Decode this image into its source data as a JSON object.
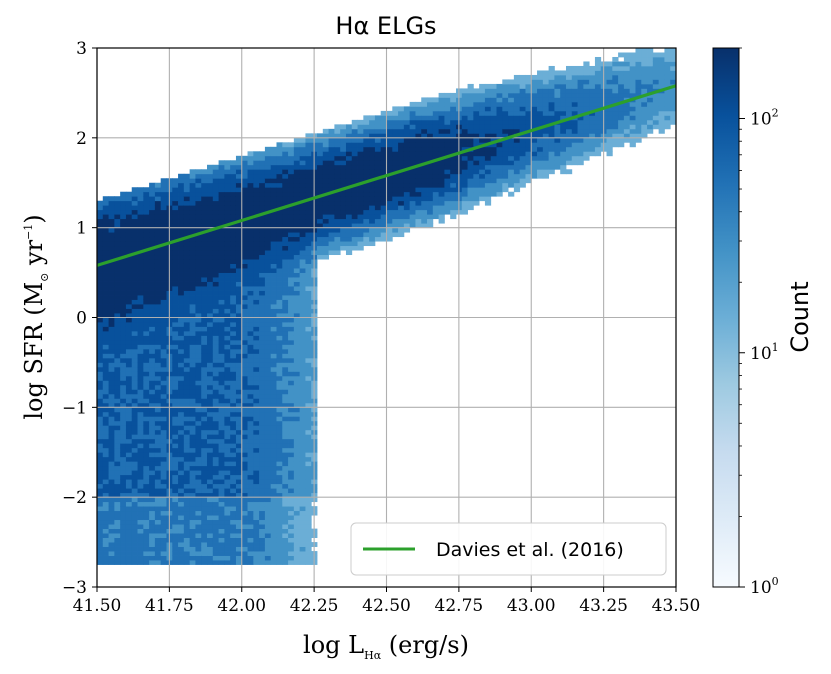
{
  "chart_data": {
    "type": "heatmap",
    "title": "Hα ELGs",
    "title_plain": "Hα ELGs",
    "xlabel": "log L_Hα (erg/s)",
    "xlabel_parts": {
      "prefix": "log L",
      "sub": "Hα",
      "suffix": " (erg/s)"
    },
    "ylabel": "log SFR (M_⊙ yr⁻¹)",
    "ylabel_parts": {
      "prefix": "log SFR (M",
      "sub": "⊙",
      "mid": " yr",
      "sup": "−1",
      "suffix": ")"
    },
    "xlim": [
      41.5,
      43.5
    ],
    "ylim": [
      -3,
      3
    ],
    "xticks": [
      41.5,
      41.75,
      42.0,
      42.25,
      42.5,
      42.75,
      43.0,
      43.25,
      43.5
    ],
    "xtick_labels": [
      "41.50",
      "41.75",
      "42.00",
      "42.25",
      "42.50",
      "42.75",
      "43.00",
      "43.25",
      "43.50"
    ],
    "yticks": [
      -3,
      -2,
      -1,
      0,
      1,
      2,
      3
    ],
    "ytick_labels": [
      "−3",
      "−2",
      "−1",
      "0",
      "1",
      "2",
      "3"
    ],
    "grid": true,
    "colormap": "Blues",
    "colorbar": {
      "label": "Count",
      "scale": "log",
      "range": [
        1,
        200
      ],
      "ticks": [
        1,
        10,
        100
      ],
      "tick_labels": [
        {
          "base": "10",
          "exp": "0"
        },
        {
          "base": "10",
          "exp": "1"
        },
        {
          "base": "10",
          "exp": "2"
        }
      ]
    },
    "density_model": {
      "description": "2D histogram of galaxies; dense ridge follows the fit line, scatter extends to low SFR at low luminosity",
      "main_ridge": {
        "y_at_41_5": 0.6,
        "slope": 1.0,
        "sigma_y": 0.3
      },
      "low_sfr_tail": {
        "x_max": 42.25,
        "y_min": -2.7
      }
    },
    "series": [
      {
        "name": "Davies et al. (2016)",
        "type": "line",
        "color": "#2ca02c",
        "x": [
          41.5,
          43.5
        ],
        "y": [
          0.58,
          2.58
        ]
      }
    ],
    "legend": {
      "position": "bottom-right",
      "entries": [
        "Davies et al. (2016)"
      ]
    }
  }
}
